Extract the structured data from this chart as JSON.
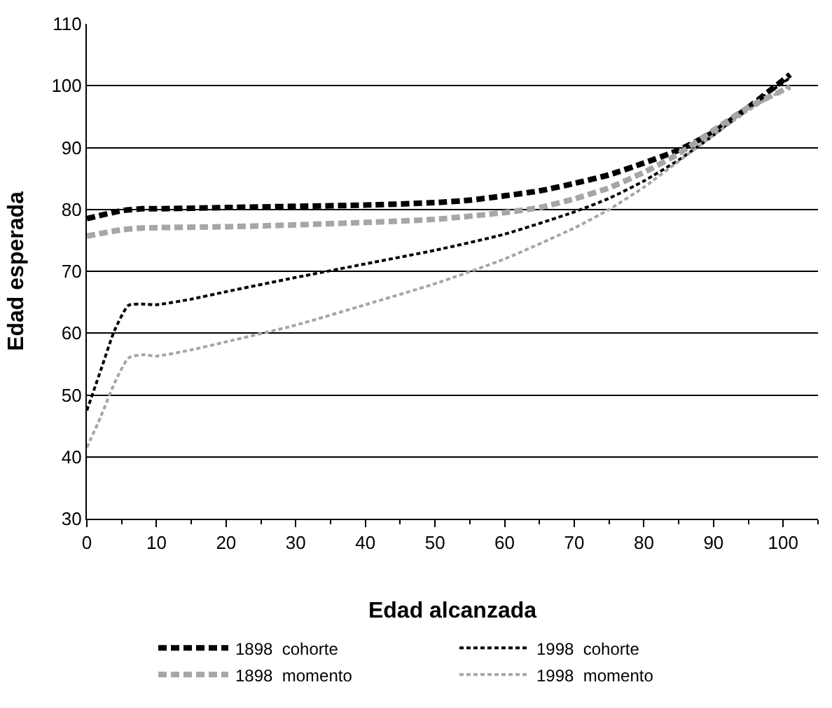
{
  "chart_data": {
    "type": "line",
    "xlabel": "Edad alcanzada",
    "ylabel": "Edad esperada",
    "xlim": [
      0,
      105
    ],
    "xticks": [
      0,
      10,
      20,
      30,
      40,
      50,
      60,
      70,
      80,
      90,
      100
    ],
    "ylim": [
      30,
      110
    ],
    "yticks": [
      30,
      40,
      50,
      60,
      70,
      80,
      90,
      100,
      110
    ],
    "grid": "y",
    "legend": "bottom",
    "marker": "none",
    "series": [
      {
        "name": "1898  cohorte",
        "color": "#000000",
        "line_style": "dashed",
        "x": [
          0,
          5,
          8,
          10,
          20,
          30,
          40,
          50,
          55,
          60,
          65,
          70,
          75,
          80,
          85,
          90,
          95,
          101
        ],
        "values": [
          78.5,
          79.8,
          80.1,
          80.1,
          80.3,
          80.5,
          80.7,
          81.1,
          81.5,
          82.2,
          83,
          84.2,
          85.6,
          87.5,
          89.6,
          92.5,
          96.5,
          101.8
        ]
      },
      {
        "name": "1998  cohorte",
        "color": "#000000",
        "line_style": "dotted",
        "x": [
          0,
          2,
          4,
          6,
          8,
          10,
          15,
          20,
          30,
          40,
          50,
          60,
          70,
          75,
          80,
          85,
          90,
          95,
          101
        ],
        "values": [
          47.5,
          54,
          60.5,
          64.5,
          64.7,
          64.6,
          65.5,
          66.7,
          69,
          71.2,
          73.4,
          76,
          79.6,
          81.8,
          84.6,
          88,
          92,
          96.5,
          101.3
        ]
      },
      {
        "name": "1898  momento",
        "color": "#a6a6a6",
        "line_style": "dashed",
        "x": [
          0,
          5,
          8,
          20,
          30,
          40,
          50,
          60,
          65,
          70,
          75,
          80,
          85,
          90,
          95,
          101
        ],
        "values": [
          75.7,
          76.7,
          77,
          77.2,
          77.5,
          77.9,
          78.4,
          79.5,
          80.3,
          81.7,
          83.5,
          86,
          89,
          92.8,
          96.5,
          99.8
        ]
      },
      {
        "name": "1998  momento",
        "color": "#a6a6a6",
        "line_style": "dotted",
        "x": [
          0,
          2,
          4,
          6,
          8,
          10,
          15,
          20,
          30,
          40,
          50,
          60,
          70,
          75,
          80,
          85,
          90,
          95,
          101
        ],
        "values": [
          41.5,
          46.5,
          52,
          56,
          56.5,
          56.3,
          57.3,
          58.6,
          61.3,
          64.6,
          68,
          72,
          77,
          80,
          83.6,
          87.8,
          92,
          96,
          100
        ]
      }
    ]
  }
}
